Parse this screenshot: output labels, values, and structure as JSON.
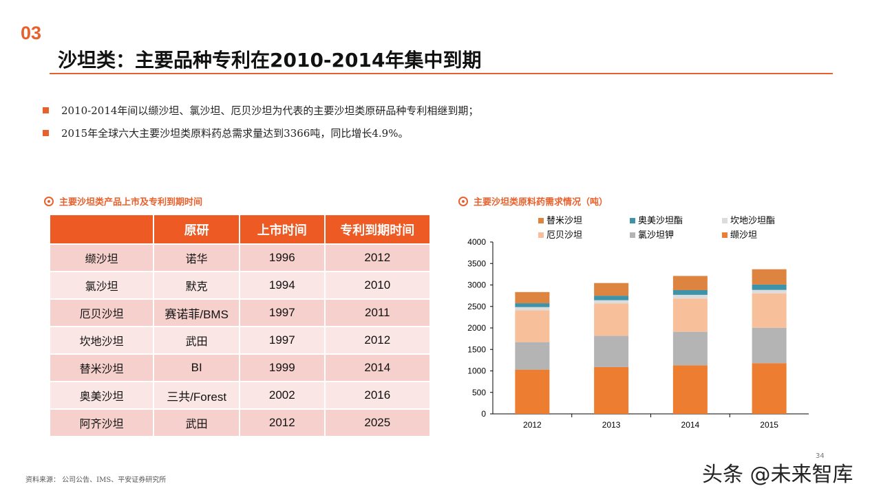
{
  "section_number": "03",
  "title": "沙坦类：主要品种专利在2010-2014年集中到期",
  "bullets": [
    "2010-2014年间以缬沙坦、氯沙坦、厄贝沙坦为代表的主要沙坦类原研品种专利相继到期；",
    "2015年全球六大主要沙坦类原料药总需求量达到3366吨，同比增长4.9%。"
  ],
  "table": {
    "caption": "主要沙坦类产品上市及专利到期时间",
    "headers": [
      "",
      "原研",
      "上市时间",
      "专利到期时间"
    ],
    "rows": [
      [
        "缬沙坦",
        "诺华",
        "1996",
        "2012"
      ],
      [
        "氯沙坦",
        "默克",
        "1994",
        "2010"
      ],
      [
        "厄贝沙坦",
        "赛诺菲/BMS",
        "1997",
        "2011"
      ],
      [
        "坎地沙坦",
        "武田",
        "1997",
        "2012"
      ],
      [
        "替米沙坦",
        "BI",
        "1999",
        "2014"
      ],
      [
        "奥美沙坦",
        "三共/Forest",
        "2002",
        "2016"
      ],
      [
        "阿齐沙坦",
        "武田",
        "2012",
        "2025"
      ]
    ]
  },
  "chart_data": {
    "type": "bar",
    "stacked": true,
    "title": "主要沙坦类原料药需求情况（吨）",
    "categories": [
      "2012",
      "2013",
      "2014",
      "2015"
    ],
    "ylim": [
      0,
      4000
    ],
    "yticks": [
      0,
      500,
      1000,
      1500,
      2000,
      2500,
      3000,
      3500,
      4000
    ],
    "legend_position": "top",
    "series": [
      {
        "name": "缬沙坦",
        "color": "#ED7D31",
        "values": [
          1030,
          1090,
          1130,
          1180
        ]
      },
      {
        "name": "氯沙坦钾",
        "color": "#B4B4B4",
        "values": [
          640,
          725,
          780,
          825
        ]
      },
      {
        "name": "厄贝沙坦",
        "color": "#F8C09A",
        "values": [
          740,
          755,
          775,
          800
        ]
      },
      {
        "name": "坎地沙坦酯",
        "color": "#DCDCDC",
        "values": [
          75,
          75,
          85,
          80
        ]
      },
      {
        "name": "奥美沙坦酯",
        "color": "#3E93A8",
        "values": [
          90,
          105,
          110,
          125
        ]
      },
      {
        "name": "替米沙坦",
        "color": "#DD8440",
        "values": [
          260,
          295,
          330,
          356
        ]
      }
    ],
    "legend_order": [
      "替米沙坦",
      "奥美沙坦酯",
      "坎地沙坦酯",
      "厄贝沙坦",
      "氯沙坦钾",
      "缬沙坦"
    ]
  },
  "source": "资料来源： 公司公告、IMS、平安证券研究所",
  "watermark": "头条 @未来智库",
  "page_number": "34"
}
